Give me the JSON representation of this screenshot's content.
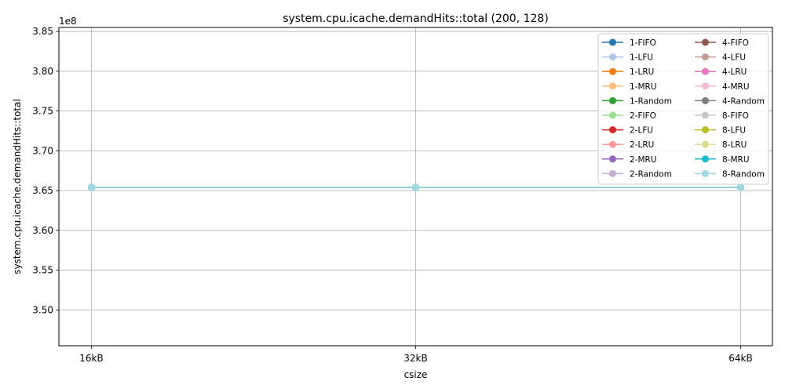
{
  "chart_data": {
    "type": "line",
    "title": "system.cpu.icache.demandHits::total (200, 128)",
    "xlabel": "csize",
    "ylabel": "system.cpu.icache.demandHits::total",
    "y_offset_label": "1e8",
    "categories": [
      "16kB",
      "32kB",
      "64kB"
    ],
    "ylim": [
      3.455,
      3.855
    ],
    "y_scale_factor": 100000000,
    "yticks": [
      3.5,
      3.55,
      3.6,
      3.65,
      3.7,
      3.75,
      3.8,
      3.85
    ],
    "ytick_labels": [
      "3.50",
      "3.55",
      "3.60",
      "3.65",
      "3.70",
      "3.75",
      "3.80",
      "3.85"
    ],
    "grid": true,
    "legend_placement": "top-right",
    "legend_columns": 2,
    "series": [
      {
        "name": "1-FIFO",
        "color": "#1f77b4",
        "values": [
          365400000,
          365400000,
          365400000
        ]
      },
      {
        "name": "1-LFU",
        "color": "#aec7e8",
        "values": [
          365400000,
          365400000,
          365400000
        ]
      },
      {
        "name": "1-LRU",
        "color": "#ff7f0e",
        "values": [
          365400000,
          365400000,
          365400000
        ]
      },
      {
        "name": "1-MRU",
        "color": "#ffbb78",
        "values": [
          365400000,
          365400000,
          365400000
        ]
      },
      {
        "name": "1-Random",
        "color": "#2ca02c",
        "values": [
          365400000,
          365400000,
          365400000
        ]
      },
      {
        "name": "2-FIFO",
        "color": "#98df8a",
        "values": [
          365400000,
          365400000,
          365400000
        ]
      },
      {
        "name": "2-LFU",
        "color": "#d62728",
        "values": [
          365400000,
          365400000,
          365400000
        ]
      },
      {
        "name": "2-LRU",
        "color": "#ff9896",
        "values": [
          365400000,
          365400000,
          365400000
        ]
      },
      {
        "name": "2-MRU",
        "color": "#9467bd",
        "values": [
          365400000,
          365400000,
          365400000
        ]
      },
      {
        "name": "2-Random",
        "color": "#c5b0d5",
        "values": [
          365400000,
          365400000,
          365400000
        ]
      },
      {
        "name": "4-FIFO",
        "color": "#8c564b",
        "values": [
          365400000,
          365400000,
          365400000
        ]
      },
      {
        "name": "4-LFU",
        "color": "#c49c94",
        "values": [
          365400000,
          365400000,
          365400000
        ]
      },
      {
        "name": "4-LRU",
        "color": "#e377c2",
        "values": [
          365400000,
          365400000,
          365400000
        ]
      },
      {
        "name": "4-MRU",
        "color": "#f7b6d2",
        "values": [
          365400000,
          365400000,
          365400000
        ]
      },
      {
        "name": "4-Random",
        "color": "#7f7f7f",
        "values": [
          365400000,
          365400000,
          365400000
        ]
      },
      {
        "name": "8-FIFO",
        "color": "#c7c7c7",
        "values": [
          365400000,
          365400000,
          365400000
        ]
      },
      {
        "name": "8-LFU",
        "color": "#bcbd22",
        "values": [
          365400000,
          365400000,
          365400000
        ]
      },
      {
        "name": "8-LRU",
        "color": "#dbdb8d",
        "values": [
          365400000,
          365400000,
          365400000
        ]
      },
      {
        "name": "8-MRU",
        "color": "#17becf",
        "values": [
          365400000,
          365400000,
          365400000
        ]
      },
      {
        "name": "8-Random",
        "color": "#9edae5",
        "values": [
          365400000,
          365400000,
          365400000
        ]
      }
    ]
  }
}
